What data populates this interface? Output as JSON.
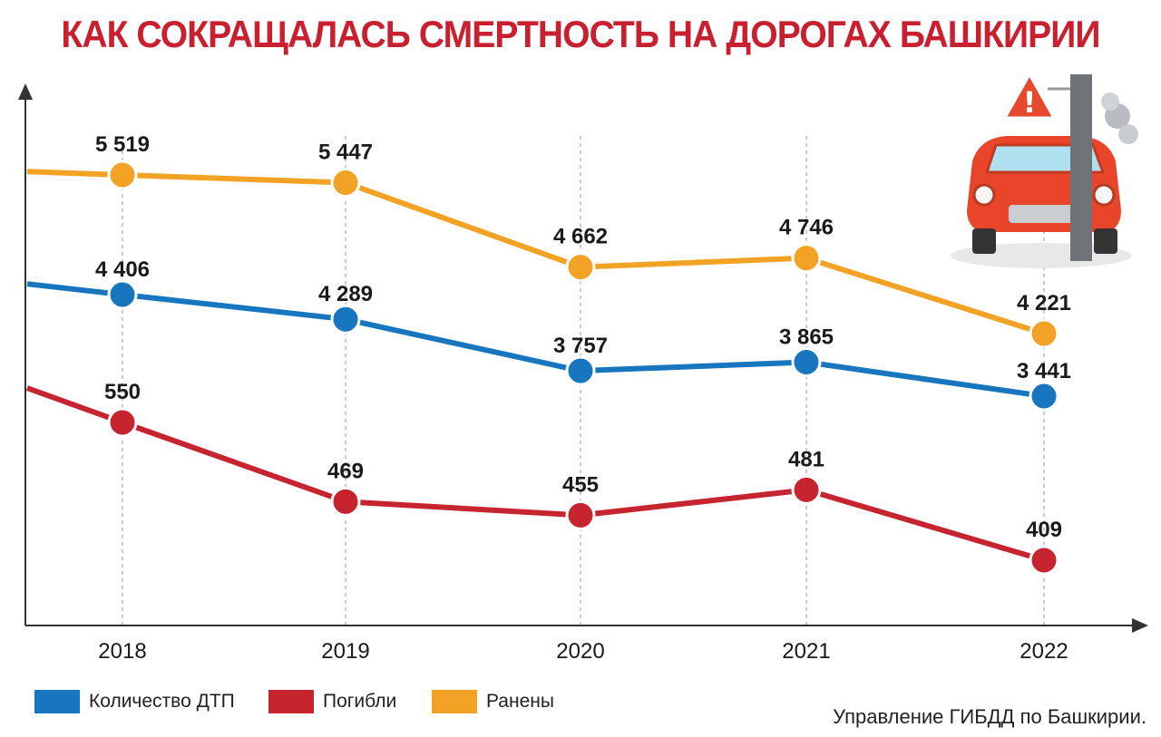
{
  "title": "КАК СОКРАЩАЛАСЬ СМЕРТНОСТЬ НА ДОРОГАХ БАШКИРИИ",
  "source": "Управление ГИБДД по Башкирии.",
  "colors": {
    "title": "#c8202f",
    "accidents": "#1776bd",
    "killed": "#c6252f",
    "injured": "#f2a326"
  },
  "icons": {
    "illustration": "crashed-car-icon"
  },
  "chart_data": {
    "type": "line",
    "title": "КАК СОКРАЩАЛАСЬ СМЕРТНОСТЬ НА ДОРОГАХ БАШКИРИИ",
    "categories": [
      "2018",
      "2019",
      "2020",
      "2021",
      "2022"
    ],
    "series": [
      {
        "key": "injured",
        "name": "Ранены",
        "color": "#f2a326",
        "values": [
          5519,
          5447,
          4662,
          4746,
          4221
        ],
        "labels": [
          "5 519",
          "5 447",
          "4 662",
          "4 746",
          "4 221"
        ]
      },
      {
        "key": "accidents",
        "name": "Количество ДТП",
        "color": "#1776bd",
        "values": [
          4406,
          4289,
          3757,
          3865,
          3441
        ],
        "labels": [
          "4 406",
          "4 289",
          "3 757",
          "3 865",
          "3 441"
        ]
      },
      {
        "key": "killed",
        "name": "Погибли",
        "color": "#c6252f",
        "values": [
          550,
          469,
          455,
          481,
          409
        ],
        "labels": [
          "550",
          "469",
          "455",
          "481",
          "409"
        ]
      }
    ],
    "legend": {
      "position": "bottom-left"
    },
    "grid": "vertical-dashed",
    "xlabel": "",
    "ylabel": ""
  }
}
